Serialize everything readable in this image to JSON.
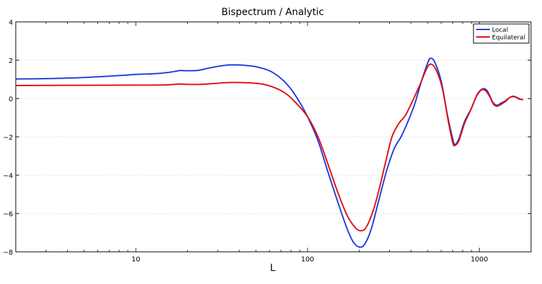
{
  "chart_data": {
    "type": "line",
    "title": "Bispectrum / Analytic",
    "xlabel": "L",
    "ylabel": "",
    "xscale": "log",
    "xlim": [
      2,
      2000
    ],
    "ylim": [
      -8,
      4
    ],
    "grid": "horizontal dotted",
    "legend_position": "top-right",
    "x_ticks": [
      {
        "value": 10,
        "label": "10"
      },
      {
        "value": 100,
        "label": "100"
      },
      {
        "value": 1000,
        "label": "1000"
      }
    ],
    "y_ticks": [
      {
        "value": 4,
        "label": "4"
      },
      {
        "value": 2,
        "label": "2"
      },
      {
        "value": 0,
        "label": "0"
      },
      {
        "value": -2,
        "label": "−2"
      },
      {
        "value": -4,
        "label": "−4"
      },
      {
        "value": -6,
        "label": "−6"
      },
      {
        "value": -8,
        "label": "−8"
      }
    ],
    "series": [
      {
        "name": "Local",
        "color": "#1f3fe0",
        "points": [
          [
            2,
            1.02
          ],
          [
            3,
            1.04
          ],
          [
            5,
            1.1
          ],
          [
            8,
            1.2
          ],
          [
            10,
            1.26
          ],
          [
            13,
            1.3
          ],
          [
            16,
            1.38
          ],
          [
            18,
            1.46
          ],
          [
            20,
            1.45
          ],
          [
            23,
            1.47
          ],
          [
            27,
            1.6
          ],
          [
            32,
            1.72
          ],
          [
            36,
            1.76
          ],
          [
            42,
            1.74
          ],
          [
            50,
            1.66
          ],
          [
            60,
            1.45
          ],
          [
            70,
            1.05
          ],
          [
            80,
            0.5
          ],
          [
            90,
            -0.2
          ],
          [
            100,
            -0.95
          ],
          [
            115,
            -2.2
          ],
          [
            130,
            -3.7
          ],
          [
            150,
            -5.4
          ],
          [
            170,
            -6.8
          ],
          [
            185,
            -7.5
          ],
          [
            200,
            -7.75
          ],
          [
            215,
            -7.6
          ],
          [
            235,
            -6.8
          ],
          [
            260,
            -5.3
          ],
          [
            290,
            -3.7
          ],
          [
            320,
            -2.6
          ],
          [
            350,
            -2.0
          ],
          [
            380,
            -1.3
          ],
          [
            420,
            -0.3
          ],
          [
            460,
            0.9
          ],
          [
            500,
            1.85
          ],
          [
            520,
            2.1
          ],
          [
            550,
            1.9
          ],
          [
            600,
            0.9
          ],
          [
            650,
            -0.8
          ],
          [
            700,
            -2.1
          ],
          [
            720,
            -2.4
          ],
          [
            760,
            -2.1
          ],
          [
            820,
            -1.2
          ],
          [
            900,
            -0.5
          ],
          [
            970,
            0.2
          ],
          [
            1040,
            0.5
          ],
          [
            1100,
            0.45
          ],
          [
            1150,
            0.15
          ],
          [
            1200,
            -0.2
          ],
          [
            1270,
            -0.35
          ],
          [
            1330,
            -0.25
          ],
          [
            1400,
            -0.15
          ],
          [
            1500,
            0.05
          ],
          [
            1600,
            0.1
          ],
          [
            1700,
            -0.02
          ],
          [
            1800,
            -0.05
          ]
        ]
      },
      {
        "name": "Equilateral",
        "color": "#e01010",
        "points": [
          [
            2,
            0.68
          ],
          [
            5,
            0.69
          ],
          [
            10,
            0.7
          ],
          [
            15,
            0.71
          ],
          [
            18,
            0.76
          ],
          [
            20,
            0.74
          ],
          [
            24,
            0.74
          ],
          [
            30,
            0.8
          ],
          [
            36,
            0.84
          ],
          [
            45,
            0.82
          ],
          [
            55,
            0.75
          ],
          [
            65,
            0.55
          ],
          [
            75,
            0.25
          ],
          [
            85,
            -0.2
          ],
          [
            100,
            -0.95
          ],
          [
            115,
            -2.0
          ],
          [
            130,
            -3.3
          ],
          [
            150,
            -4.9
          ],
          [
            170,
            -6.1
          ],
          [
            190,
            -6.75
          ],
          [
            205,
            -6.9
          ],
          [
            220,
            -6.7
          ],
          [
            240,
            -5.9
          ],
          [
            260,
            -4.8
          ],
          [
            285,
            -3.3
          ],
          [
            310,
            -2.0
          ],
          [
            340,
            -1.3
          ],
          [
            370,
            -0.9
          ],
          [
            400,
            -0.3
          ],
          [
            450,
            0.7
          ],
          [
            490,
            1.5
          ],
          [
            520,
            1.8
          ],
          [
            560,
            1.5
          ],
          [
            610,
            0.5
          ],
          [
            660,
            -1.2
          ],
          [
            700,
            -2.3
          ],
          [
            720,
            -2.45
          ],
          [
            760,
            -2.2
          ],
          [
            820,
            -1.3
          ],
          [
            890,
            -0.6
          ],
          [
            960,
            0.1
          ],
          [
            1030,
            0.45
          ],
          [
            1090,
            0.4
          ],
          [
            1150,
            0.1
          ],
          [
            1210,
            -0.3
          ],
          [
            1270,
            -0.4
          ],
          [
            1340,
            -0.3
          ],
          [
            1420,
            -0.15
          ],
          [
            1500,
            0.05
          ],
          [
            1580,
            0.12
          ],
          [
            1660,
            0.05
          ],
          [
            1750,
            -0.05
          ],
          [
            1800,
            -0.05
          ]
        ]
      }
    ]
  }
}
